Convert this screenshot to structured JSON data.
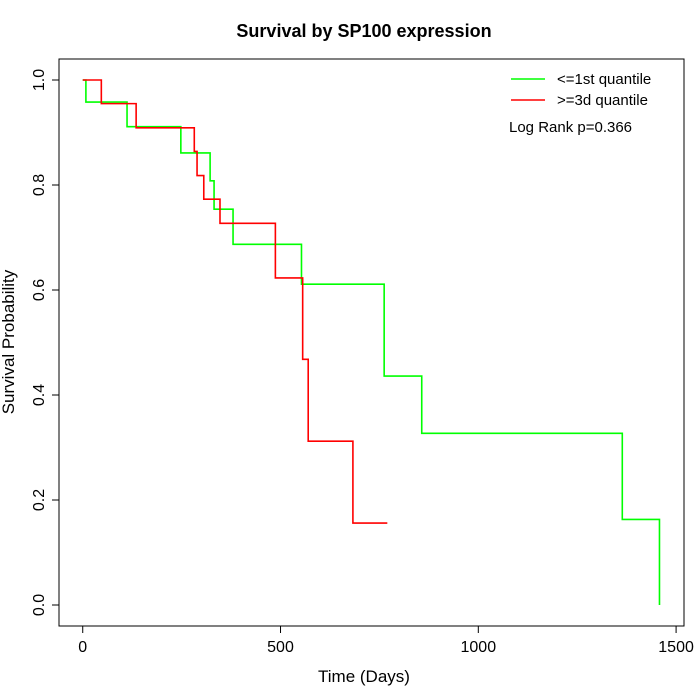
{
  "chart_data": {
    "type": "line",
    "title": "Survival by SP100 expression",
    "xlabel": "Time (Days)",
    "ylabel": "Survival Probability",
    "xlim": [
      -60,
      1520
    ],
    "ylim": [
      -0.04,
      1.04
    ],
    "xticks": [
      0,
      500,
      1000,
      1500
    ],
    "xtick_labels": [
      "0",
      "500",
      "1000",
      "1500"
    ],
    "yticks": [
      0.0,
      0.2,
      0.4,
      0.6,
      0.8,
      1.0
    ],
    "ytick_labels": [
      "0.0",
      "0.2",
      "0.4",
      "0.6",
      "0.8",
      "1.0"
    ],
    "grid": false,
    "legend_position": "top-right",
    "annotation": "Log Rank p=0.366",
    "series": [
      {
        "name": "<=1st quantile",
        "color": "#00ff00",
        "x": [
          0,
          8,
          112,
          248,
          322,
          332,
          380,
          553,
          762,
          857,
          1364,
          1458
        ],
        "y": [
          1.0,
          0.958,
          0.911,
          0.861,
          0.808,
          0.754,
          0.687,
          0.611,
          0.436,
          0.327,
          0.163,
          0.0
        ]
      },
      {
        "name": ">=3d quantile",
        "color": "#ff0000",
        "x": [
          0,
          47,
          135,
          282,
          289,
          306,
          347,
          487,
          556,
          563,
          570,
          683,
          770
        ],
        "y": [
          1.0,
          0.955,
          0.909,
          0.864,
          0.818,
          0.773,
          0.727,
          0.623,
          0.468,
          0.468,
          0.312,
          0.156,
          0.156
        ]
      }
    ]
  }
}
